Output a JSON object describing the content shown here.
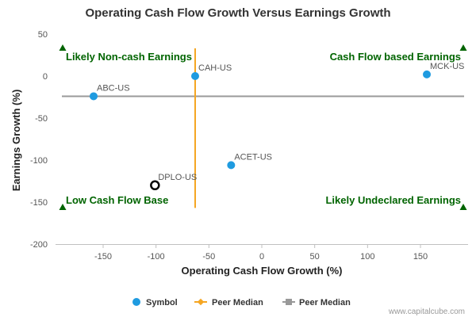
{
  "chart_data": {
    "type": "scatter",
    "title": "Operating Cash Flow Growth Versus Earnings Growth",
    "xlabel": "Operating Cash Flow Growth (%)",
    "ylabel": "Earnings Growth (%)",
    "xlim": [
      -195,
      195
    ],
    "ylim": [
      -200,
      50
    ],
    "x_ticks": [
      -150,
      -100,
      -50,
      0,
      50,
      100,
      150
    ],
    "y_ticks": [
      50,
      0,
      -50,
      -100,
      -150,
      -200
    ],
    "grid": false,
    "legend_position": "bottom",
    "series": [
      {
        "name": "Symbol",
        "color": "#1f9be0",
        "points": [
          {
            "label": "ABC-US",
            "x": -159,
            "y": -24
          },
          {
            "label": "CAH-US",
            "x": -63,
            "y": 0
          },
          {
            "label": "MCK-US",
            "x": 156,
            "y": 2
          },
          {
            "label": "ACET-US",
            "x": -29,
            "y": -106
          }
        ]
      },
      {
        "name": "Peer Median",
        "color": "#f5a623",
        "type": "vertical-line",
        "x": -63,
        "y_range": [
          33,
          -157
        ]
      },
      {
        "name": "Peer Median",
        "color": "#999999",
        "type": "horizontal-line",
        "y": -24
      }
    ],
    "highlight_point": {
      "label": "DPLO-US",
      "x": -101,
      "y": -130,
      "color": "#000000"
    },
    "quadrant_labels": {
      "top_left": "Likely Non-cash Earnings",
      "top_right": "Cash Flow based Earnings",
      "bottom_left": "Low Cash Flow Base",
      "bottom_right": "Likely Undeclared Earnings"
    },
    "quadrant_marker_color": "#006400",
    "credit": "www.capitalcube.com"
  }
}
